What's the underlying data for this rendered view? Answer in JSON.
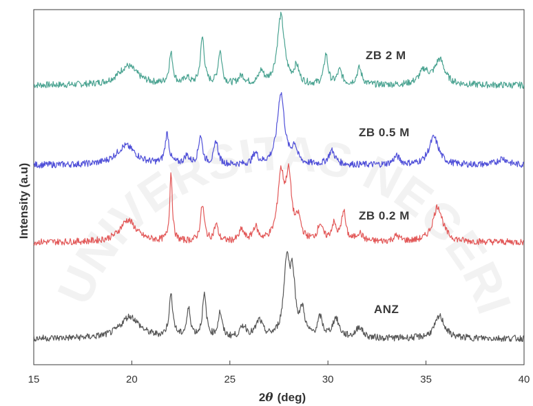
{
  "chart_data": {
    "type": "line",
    "xlabel_main": "2",
    "xlabel_theta": "θ",
    "xlabel_unit": "(deg)",
    "ylabel": "Intensity (a.u)",
    "xlim": [
      15,
      40
    ],
    "xticks": [
      "15",
      "20",
      "25",
      "30",
      "35",
      "40"
    ],
    "y_tick_labels": "none",
    "grid": false,
    "legend": "inline labels next to each trace",
    "watermark_text": "UNIVERSITAS NEGERI",
    "series": [
      {
        "name": "ZB 2 M",
        "color": "#4aa391",
        "peaks": [
          {
            "x": 19.8,
            "h": 0.35,
            "w": 0.6
          },
          {
            "x": 22.0,
            "h": 0.55,
            "w": 0.12
          },
          {
            "x": 22.8,
            "h": 0.12,
            "w": 0.15
          },
          {
            "x": 23.6,
            "h": 0.85,
            "w": 0.12
          },
          {
            "x": 24.5,
            "h": 0.6,
            "w": 0.12
          },
          {
            "x": 25.6,
            "h": 0.15,
            "w": 0.2
          },
          {
            "x": 26.6,
            "h": 0.22,
            "w": 0.15
          },
          {
            "x": 27.6,
            "h": 1.25,
            "w": 0.22
          },
          {
            "x": 28.4,
            "h": 0.3,
            "w": 0.15
          },
          {
            "x": 29.9,
            "h": 0.55,
            "w": 0.12
          },
          {
            "x": 30.6,
            "h": 0.25,
            "w": 0.15
          },
          {
            "x": 31.6,
            "h": 0.3,
            "w": 0.15
          },
          {
            "x": 34.9,
            "h": 0.25,
            "w": 0.3
          },
          {
            "x": 35.7,
            "h": 0.45,
            "w": 0.3
          }
        ]
      },
      {
        "name": "ZB 0.5 M",
        "color": "#4f4fd8",
        "peaks": [
          {
            "x": 19.7,
            "h": 0.35,
            "w": 0.6
          },
          {
            "x": 21.8,
            "h": 0.55,
            "w": 0.12
          },
          {
            "x": 22.8,
            "h": 0.15,
            "w": 0.15
          },
          {
            "x": 23.5,
            "h": 0.52,
            "w": 0.12
          },
          {
            "x": 24.3,
            "h": 0.42,
            "w": 0.12
          },
          {
            "x": 26.3,
            "h": 0.2,
            "w": 0.15
          },
          {
            "x": 27.6,
            "h": 1.3,
            "w": 0.22
          },
          {
            "x": 28.3,
            "h": 0.3,
            "w": 0.15
          },
          {
            "x": 30.2,
            "h": 0.25,
            "w": 0.2
          },
          {
            "x": 33.5,
            "h": 0.15,
            "w": 0.2
          },
          {
            "x": 35.4,
            "h": 0.5,
            "w": 0.3
          },
          {
            "x": 38.9,
            "h": 0.12,
            "w": 0.3
          }
        ]
      },
      {
        "name": "ZB 0.2 M",
        "color": "#e25757",
        "peaks": [
          {
            "x": 19.8,
            "h": 0.4,
            "w": 0.5
          },
          {
            "x": 22.0,
            "h": 1.25,
            "w": 0.08
          },
          {
            "x": 23.6,
            "h": 0.65,
            "w": 0.12
          },
          {
            "x": 24.3,
            "h": 0.3,
            "w": 0.12
          },
          {
            "x": 25.6,
            "h": 0.2,
            "w": 0.15
          },
          {
            "x": 26.3,
            "h": 0.25,
            "w": 0.15
          },
          {
            "x": 27.6,
            "h": 1.15,
            "w": 0.2
          },
          {
            "x": 28.0,
            "h": 1.1,
            "w": 0.18
          },
          {
            "x": 28.5,
            "h": 0.35,
            "w": 0.15
          },
          {
            "x": 29.6,
            "h": 0.3,
            "w": 0.15
          },
          {
            "x": 30.3,
            "h": 0.3,
            "w": 0.15
          },
          {
            "x": 30.8,
            "h": 0.55,
            "w": 0.12
          },
          {
            "x": 31.6,
            "h": 0.15,
            "w": 0.2
          },
          {
            "x": 33.5,
            "h": 0.1,
            "w": 0.2
          },
          {
            "x": 35.6,
            "h": 0.65,
            "w": 0.3
          }
        ]
      },
      {
        "name": "ANZ",
        "color": "#555555",
        "peaks": [
          {
            "x": 19.9,
            "h": 0.4,
            "w": 0.6
          },
          {
            "x": 22.0,
            "h": 0.75,
            "w": 0.12
          },
          {
            "x": 22.9,
            "h": 0.5,
            "w": 0.12
          },
          {
            "x": 23.7,
            "h": 0.75,
            "w": 0.12
          },
          {
            "x": 24.5,
            "h": 0.45,
            "w": 0.12
          },
          {
            "x": 25.7,
            "h": 0.2,
            "w": 0.2
          },
          {
            "x": 26.5,
            "h": 0.3,
            "w": 0.2
          },
          {
            "x": 27.9,
            "h": 1.35,
            "w": 0.18
          },
          {
            "x": 28.2,
            "h": 1.0,
            "w": 0.15
          },
          {
            "x": 28.7,
            "h": 0.45,
            "w": 0.15
          },
          {
            "x": 29.6,
            "h": 0.35,
            "w": 0.15
          },
          {
            "x": 30.4,
            "h": 0.35,
            "w": 0.2
          },
          {
            "x": 31.6,
            "h": 0.2,
            "w": 0.2
          },
          {
            "x": 35.7,
            "h": 0.4,
            "w": 0.3
          }
        ]
      }
    ]
  }
}
